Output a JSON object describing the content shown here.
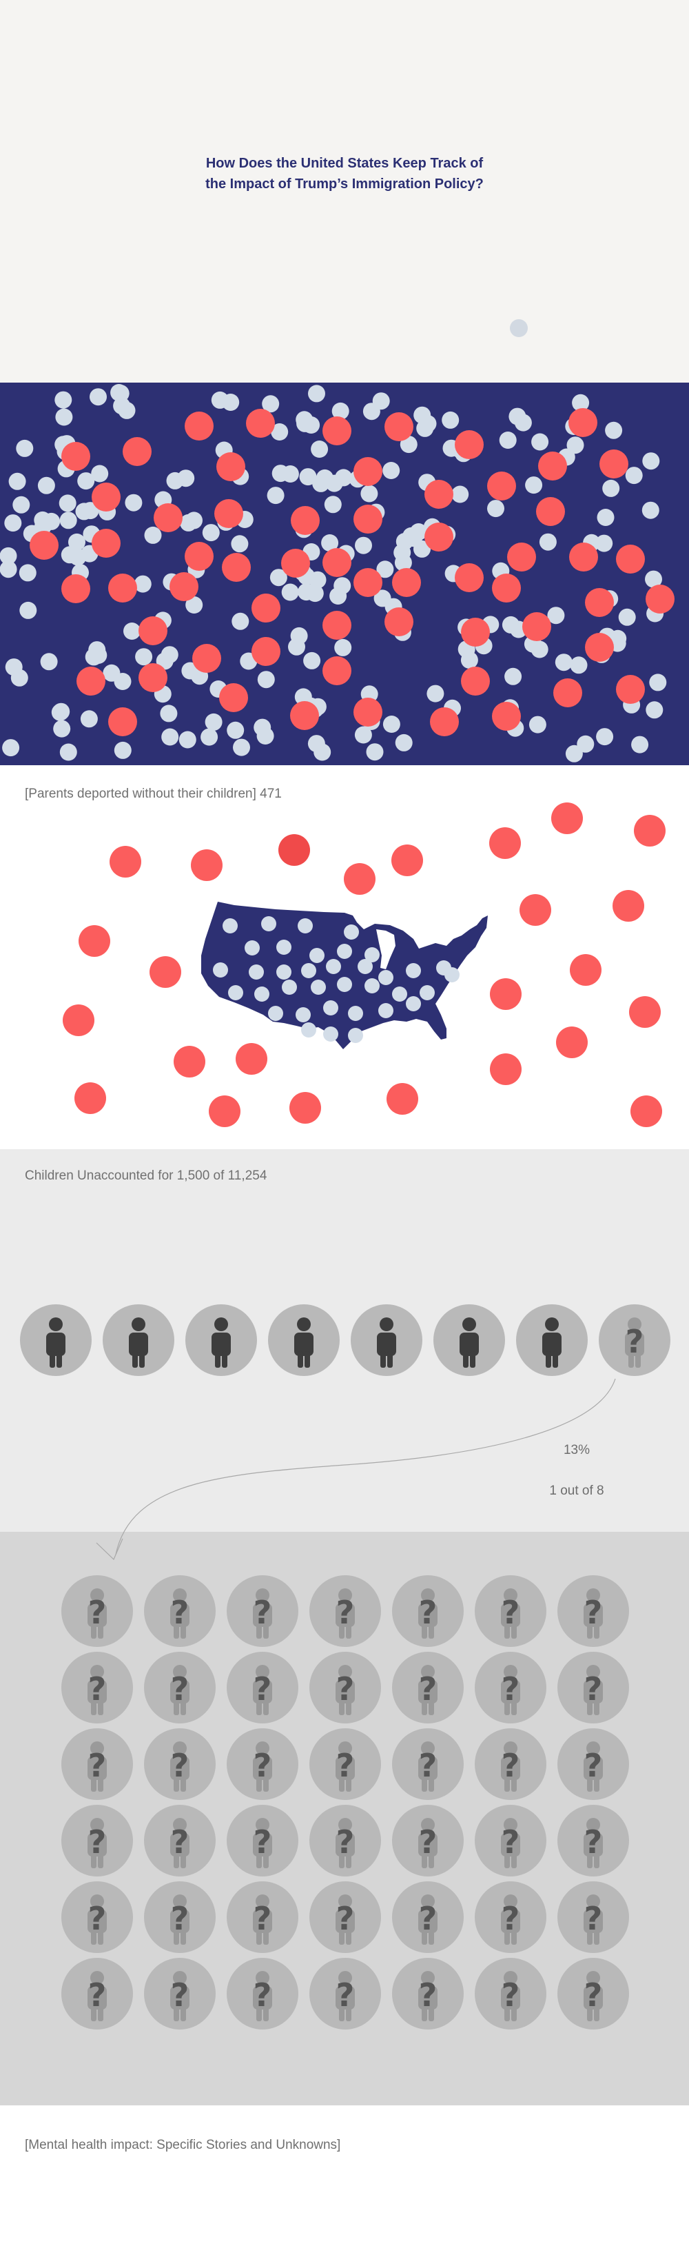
{
  "hero": {
    "title": "How Does the United States Keep Track of\nthe Impact of Trump’s Immigration Policy?"
  },
  "parents": {
    "caption": "[Parents deported without their children] 471"
  },
  "children": {
    "caption": "Children Unaccounted for 1,500 of 11,254",
    "stat_percent": "13%",
    "stat_fraction": "1 out of 8"
  },
  "mental": {
    "caption": "[Mental health impact: Specific Stories and Unknowns]"
  },
  "colors": {
    "navy": "#2d3073",
    "coral": "#fb5d5d",
    "light_dot": "#d3dde8",
    "circle_gray": "#b9b9b9",
    "person_dark": "#3d3d3d",
    "question_gray": "#555555"
  }
}
